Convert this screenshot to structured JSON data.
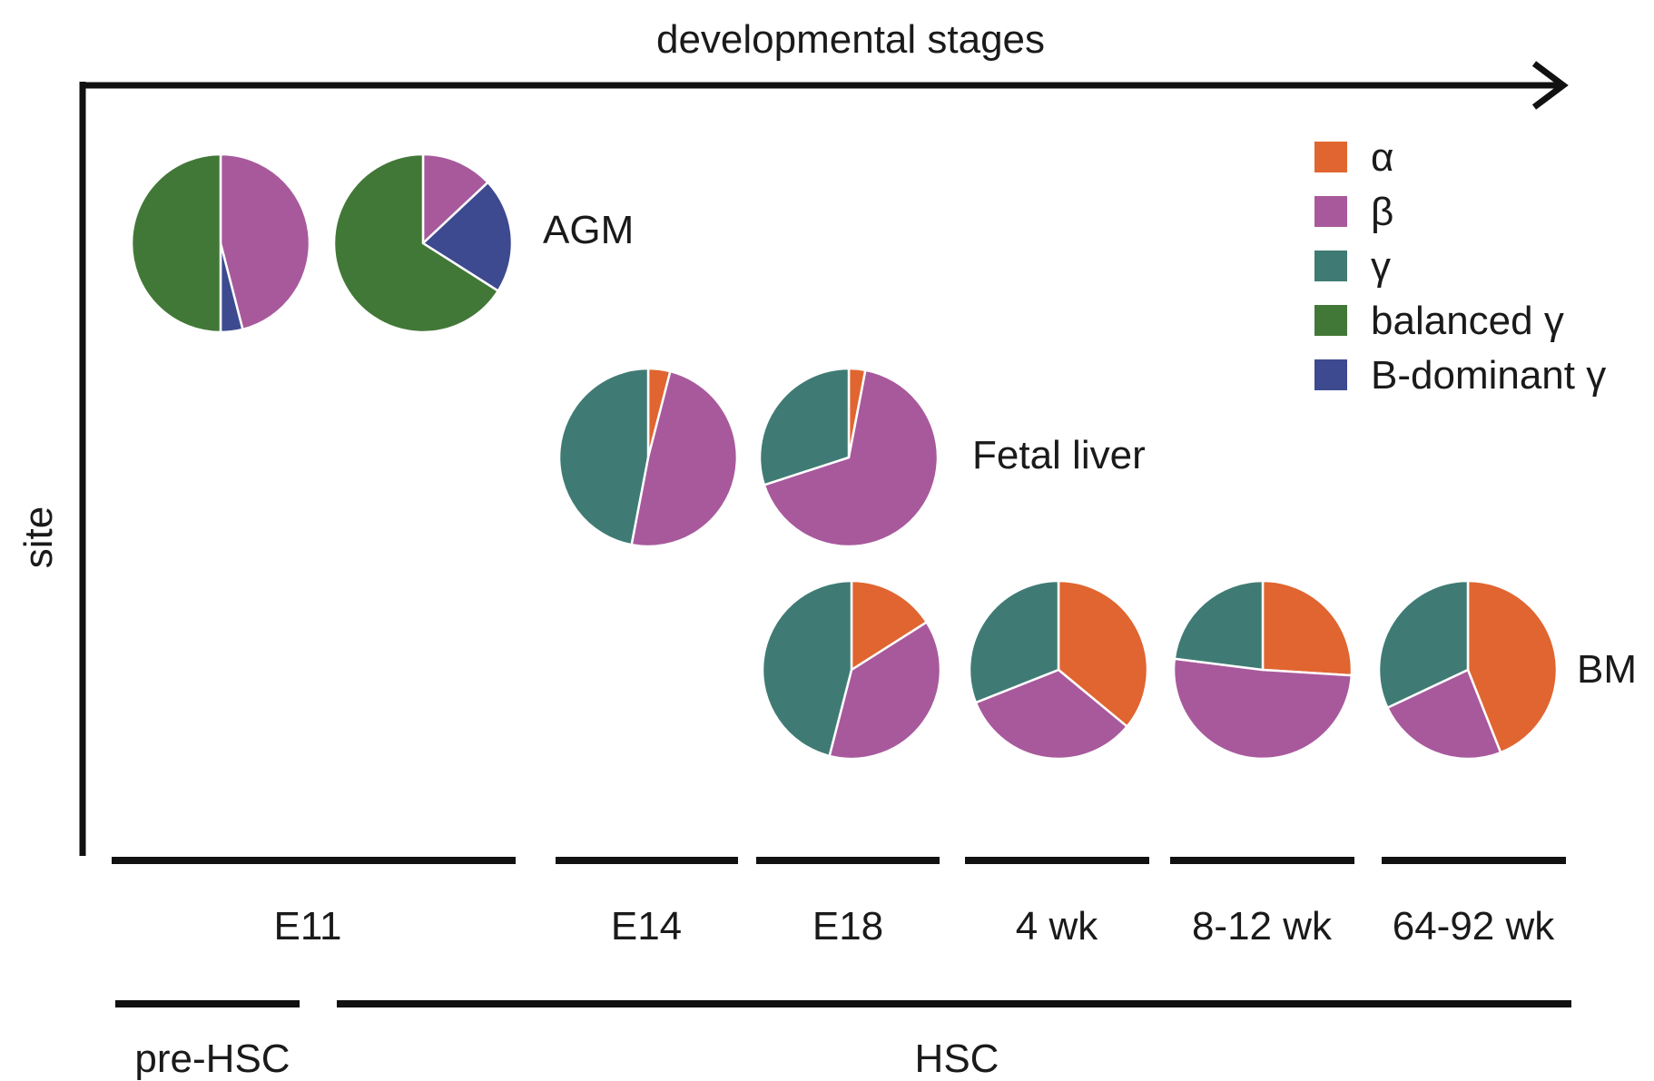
{
  "chart_data": {
    "type": "pie",
    "x_axis_label": "developmental stages",
    "y_axis_label": "site",
    "legend": [
      {
        "key": "alpha",
        "label": "α",
        "color": "#E06530"
      },
      {
        "key": "beta",
        "label": "β",
        "color": "#A8599C"
      },
      {
        "key": "gamma",
        "label": "γ",
        "color": "#3F7B74"
      },
      {
        "key": "balanced",
        "label": "balanced γ",
        "color": "#427837"
      },
      {
        "key": "bdom",
        "label": "B-dominant γ",
        "color": "#3D4A90"
      }
    ],
    "sites": [
      "AGM",
      "Fetal liver",
      "BM"
    ],
    "stages": [
      "E11",
      "E14",
      "E18",
      "4 wk",
      "8-12 wk",
      "64-92 wk"
    ],
    "cell_types": [
      "pre-HSC",
      "HSC"
    ],
    "pies": [
      {
        "site": "AGM",
        "stage": "E11",
        "slices": [
          {
            "key": "beta",
            "value": 46
          },
          {
            "key": "bdom",
            "value": 4
          },
          {
            "key": "balanced",
            "value": 50
          }
        ]
      },
      {
        "site": "AGM",
        "stage": "E11",
        "slices": [
          {
            "key": "beta",
            "value": 13
          },
          {
            "key": "bdom",
            "value": 21
          },
          {
            "key": "balanced",
            "value": 66
          }
        ]
      },
      {
        "site": "Fetal liver",
        "stage": "E14",
        "slices": [
          {
            "key": "alpha",
            "value": 4
          },
          {
            "key": "beta",
            "value": 49
          },
          {
            "key": "gamma",
            "value": 47
          }
        ]
      },
      {
        "site": "Fetal liver",
        "stage": "E18",
        "slices": [
          {
            "key": "alpha",
            "value": 3
          },
          {
            "key": "beta",
            "value": 67
          },
          {
            "key": "gamma",
            "value": 30
          }
        ]
      },
      {
        "site": "BM",
        "stage": "E18",
        "slices": [
          {
            "key": "alpha",
            "value": 16
          },
          {
            "key": "beta",
            "value": 38
          },
          {
            "key": "gamma",
            "value": 46
          }
        ]
      },
      {
        "site": "BM",
        "stage": "4 wk",
        "slices": [
          {
            "key": "alpha",
            "value": 36
          },
          {
            "key": "beta",
            "value": 33
          },
          {
            "key": "gamma",
            "value": 31
          }
        ]
      },
      {
        "site": "BM",
        "stage": "8-12 wk",
        "slices": [
          {
            "key": "alpha",
            "value": 26
          },
          {
            "key": "beta",
            "value": 51
          },
          {
            "key": "gamma",
            "value": 23
          }
        ]
      },
      {
        "site": "BM",
        "stage": "64-92 wk",
        "slices": [
          {
            "key": "alpha",
            "value": 44
          },
          {
            "key": "beta",
            "value": 24
          },
          {
            "key": "gamma",
            "value": 32
          }
        ]
      }
    ]
  }
}
